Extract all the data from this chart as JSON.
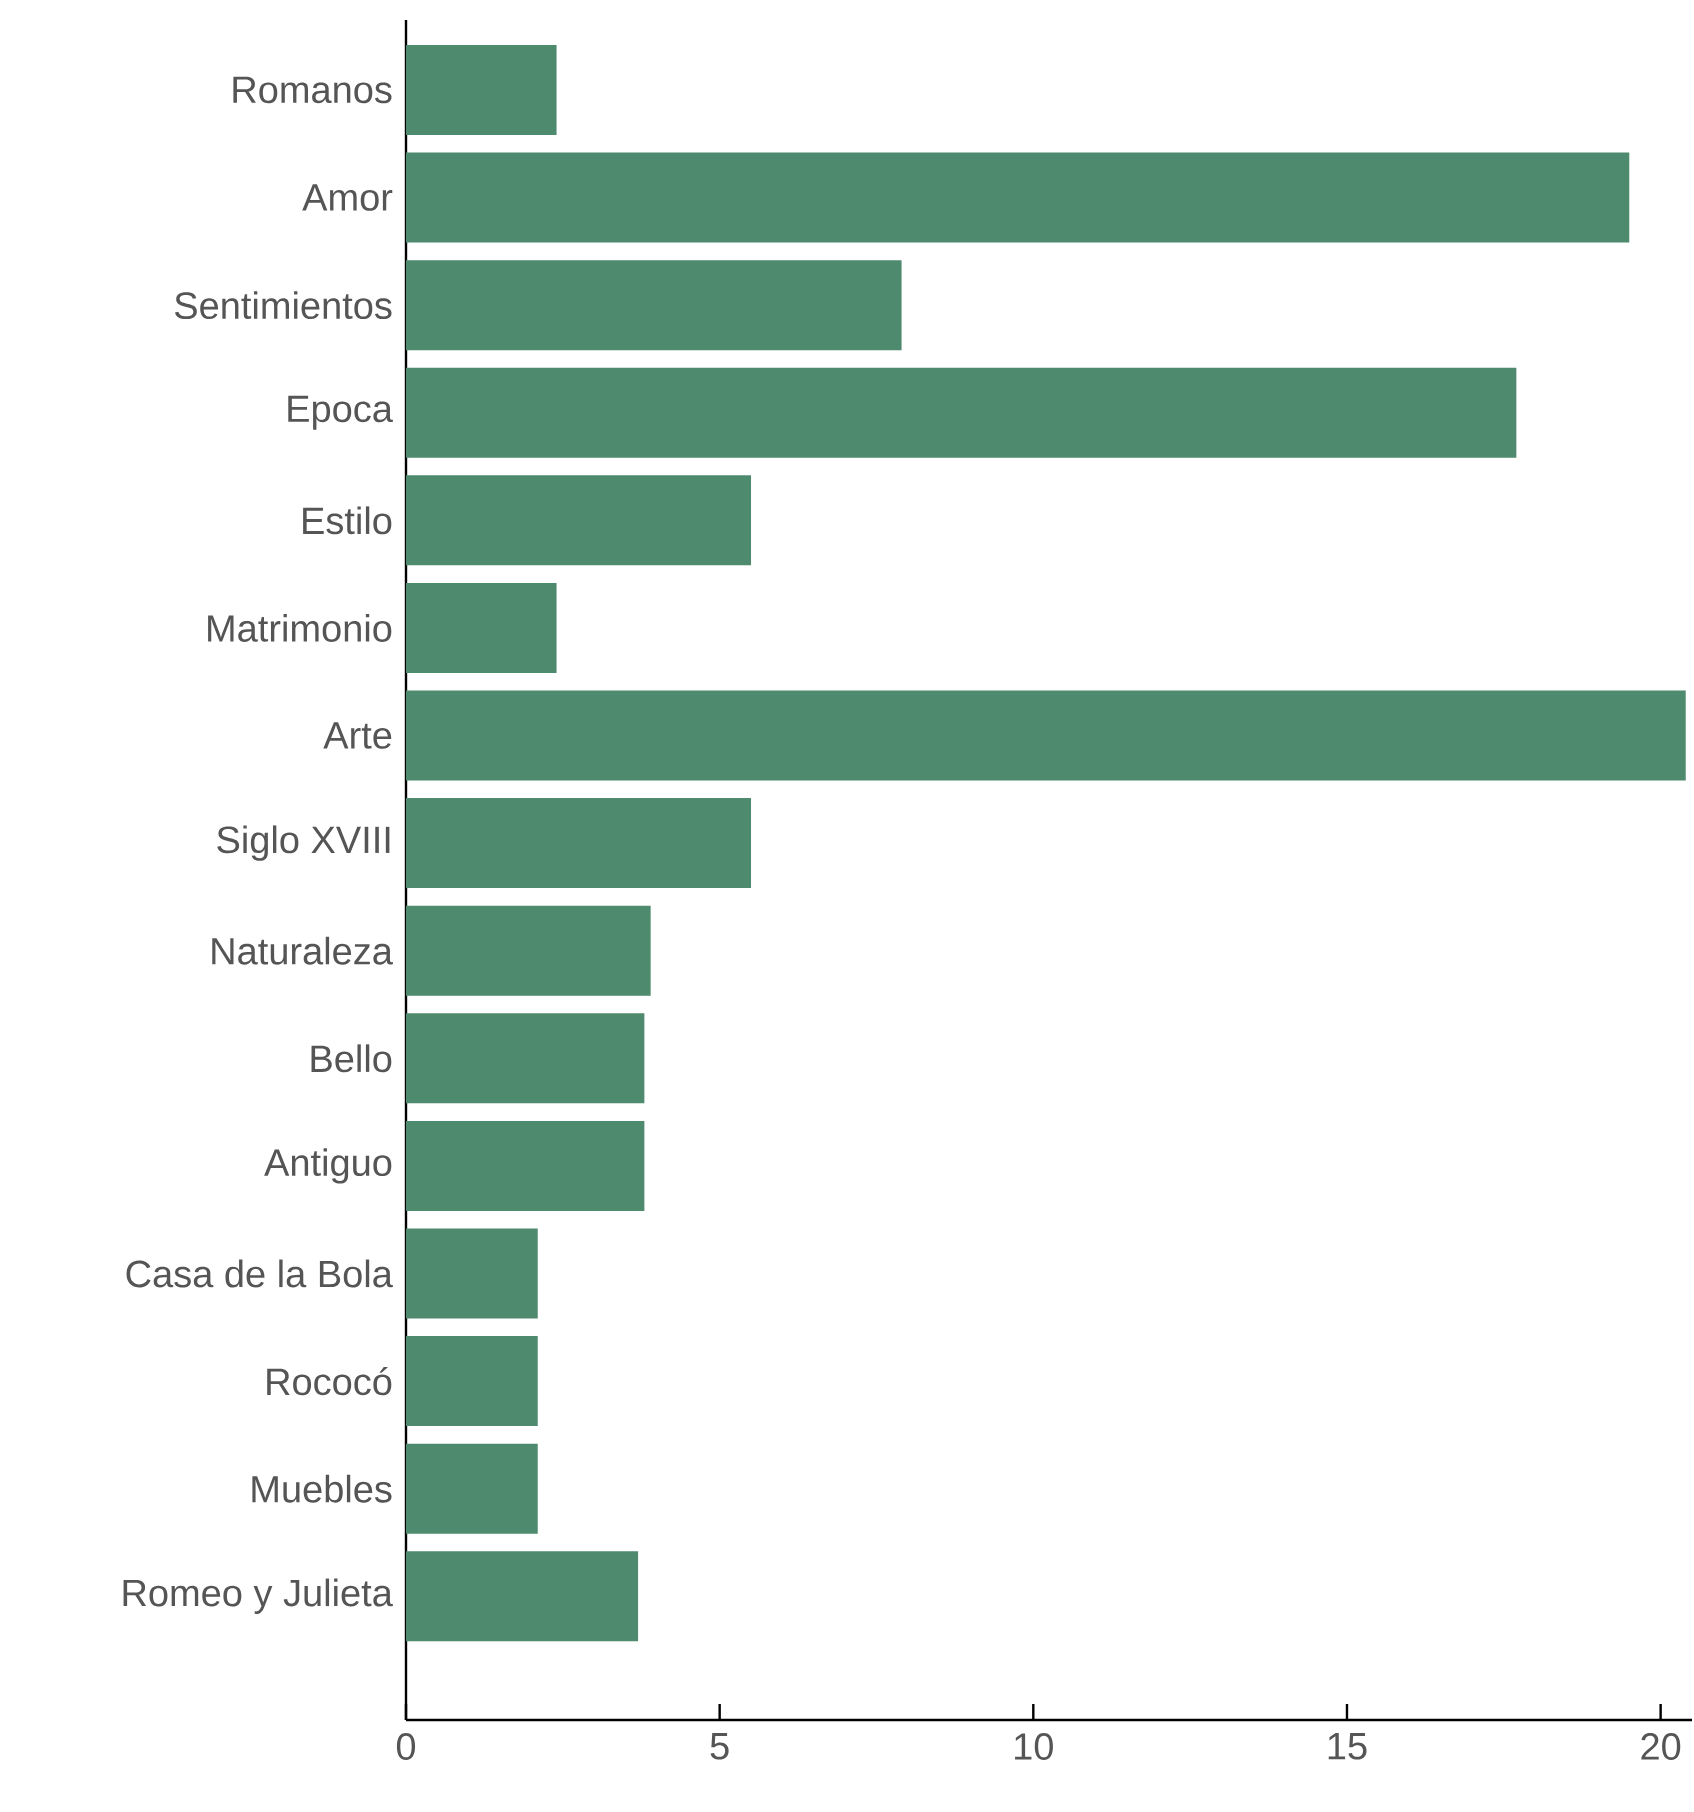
{
  "chart_data": {
    "type": "bar",
    "orientation": "horizontal",
    "categories": [
      "Romanos",
      "Amor",
      "Sentimientos",
      "Epoca",
      "Estilo",
      "Matrimonio",
      "Arte",
      "Siglo XVIII",
      "Naturaleza",
      "Bello",
      "Antiguo",
      "Casa de la Bola",
      "Rococó",
      "Muebles",
      "Romeo y Julieta"
    ],
    "values": [
      2.4,
      19.5,
      7.9,
      17.7,
      5.5,
      2.4,
      20.4,
      5.5,
      3.9,
      3.8,
      3.8,
      2.1,
      2.1,
      2.1,
      3.7
    ],
    "color": "#4e8a6e",
    "xlim": [
      0,
      20.5
    ],
    "xticks": [
      0,
      5,
      10,
      15,
      20
    ],
    "grid": false
  }
}
